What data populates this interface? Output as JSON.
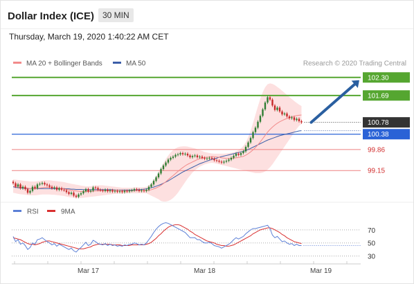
{
  "header": {
    "title": "Dollar Index (ICE)",
    "timeframe": "30 MIN",
    "timestamp": "Thursday, March 19, 2020 1:40:22 AM CET"
  },
  "colors": {
    "price_up": "#2e7d32",
    "price_down": "#c62828",
    "bollinger_fill": "#fde0e0",
    "ma20": "#f28b8b",
    "ma50": "#3b5ea8",
    "resistance": "#55a630",
    "support_blue": "#2a62d6",
    "support_red": "#ee8080",
    "current_price": "#333333",
    "arrow": "#2a5fa0",
    "rsi": "#5b7fd6",
    "rsi_ma": "#d93030"
  },
  "chart_data": [
    {
      "type": "line",
      "name": "price",
      "legend": [
        {
          "label": "MA 20 + Bollinger Bands",
          "color": "#f28b8b"
        },
        {
          "label": "MA 50",
          "color": "#3b5ea8"
        }
      ],
      "legend_position": "top-left",
      "credit": "Research © 2020 Trading Central",
      "x_ticks": [
        {
          "label": "Mar 17",
          "index": 31
        },
        {
          "label": "Mar 18",
          "index": 79
        },
        {
          "label": "Mar 19",
          "index": 127
        }
      ],
      "x_range": [
        0,
        156
      ],
      "ylim": [
        98.1,
        102.6
      ],
      "levels": [
        {
          "label": "102.30",
          "value": 102.3,
          "kind": "resistance"
        },
        {
          "label": "101.69",
          "value": 101.69,
          "kind": "resistance"
        },
        {
          "label": "100.78",
          "value": 100.78,
          "kind": "current"
        },
        {
          "label": "100.38",
          "value": 100.38,
          "kind": "pivot"
        },
        {
          "label": "99.86",
          "value": 99.86,
          "kind": "support"
        },
        {
          "label": "99.15",
          "value": 99.15,
          "kind": "support"
        }
      ],
      "close": [
        98.72,
        98.61,
        98.68,
        98.55,
        98.6,
        98.52,
        98.4,
        98.46,
        98.6,
        98.55,
        98.68,
        98.7,
        98.73,
        98.68,
        98.65,
        98.6,
        98.55,
        98.58,
        98.5,
        98.55,
        98.5,
        98.48,
        98.42,
        98.36,
        98.4,
        98.3,
        98.26,
        98.34,
        98.38,
        98.45,
        98.52,
        98.44,
        98.47,
        98.58,
        98.56,
        98.5,
        98.48,
        98.46,
        98.5,
        98.45,
        98.48,
        98.44,
        98.46,
        98.43,
        98.45,
        98.42,
        98.46,
        98.44,
        98.47,
        98.48,
        98.52,
        98.5,
        98.46,
        98.48,
        98.46,
        98.5,
        98.6,
        98.68,
        98.8,
        98.92,
        99.05,
        99.2,
        99.32,
        99.42,
        99.52,
        99.58,
        99.62,
        99.68,
        99.7,
        99.74,
        99.7,
        99.72,
        99.66,
        99.6,
        99.64,
        99.66,
        99.6,
        99.62,
        99.58,
        99.55,
        99.56,
        99.58,
        99.55,
        99.5,
        99.48,
        99.45,
        99.42,
        99.45,
        99.48,
        99.52,
        99.58,
        99.65,
        99.72,
        99.68,
        99.74,
        99.8,
        99.95,
        100.1,
        100.25,
        100.45,
        100.6,
        100.8,
        101.0,
        101.22,
        101.45,
        101.63,
        101.55,
        101.35,
        101.2,
        101.28,
        101.15,
        101.05,
        101.08,
        100.98,
        100.92,
        100.95,
        100.86,
        100.9,
        100.82,
        100.78
      ],
      "ma20": [
        98.62,
        98.6,
        98.59,
        98.58,
        98.57,
        98.56,
        98.55,
        98.54,
        98.54,
        98.54,
        98.55,
        98.56,
        98.57,
        98.58,
        98.58,
        98.58,
        98.57,
        98.57,
        98.56,
        98.55,
        98.54,
        98.53,
        98.51,
        98.5,
        98.48,
        98.47,
        98.46,
        98.45,
        98.44,
        98.44,
        98.44,
        98.44,
        98.44,
        98.45,
        98.46,
        98.46,
        98.47,
        98.47,
        98.47,
        98.47,
        98.48,
        98.48,
        98.48,
        98.48,
        98.48,
        98.47,
        98.47,
        98.47,
        98.47,
        98.47,
        98.47,
        98.47,
        98.47,
        98.47,
        98.47,
        98.47,
        98.48,
        98.5,
        98.53,
        98.56,
        98.6,
        98.65,
        98.71,
        98.77,
        98.84,
        98.91,
        98.98,
        99.05,
        99.12,
        99.19,
        99.25,
        99.31,
        99.36,
        99.4,
        99.44,
        99.48,
        99.52,
        99.55,
        99.57,
        99.59,
        99.6,
        99.61,
        99.62,
        99.62,
        99.61,
        99.6,
        99.58,
        99.57,
        99.56,
        99.56,
        99.56,
        99.57,
        99.58,
        99.59,
        99.61,
        99.63,
        99.67,
        99.72,
        99.78,
        99.85,
        99.93,
        100.02,
        100.12,
        100.23,
        100.34,
        100.45,
        100.54,
        100.62,
        100.69,
        100.75,
        100.8,
        100.84,
        100.88,
        100.91,
        100.94,
        100.97,
        100.99,
        101.01,
        101.02,
        101.03
      ],
      "bb_upper": [
        98.85,
        98.84,
        98.83,
        98.82,
        98.81,
        98.8,
        98.79,
        98.78,
        98.78,
        98.78,
        98.79,
        98.8,
        98.81,
        98.82,
        98.82,
        98.82,
        98.81,
        98.8,
        98.79,
        98.78,
        98.77,
        98.76,
        98.74,
        98.72,
        98.7,
        98.69,
        98.67,
        98.66,
        98.64,
        98.63,
        98.62,
        98.62,
        98.62,
        98.63,
        98.64,
        98.65,
        98.65,
        98.65,
        98.64,
        98.63,
        98.62,
        98.61,
        98.6,
        98.59,
        98.58,
        98.57,
        98.57,
        98.57,
        98.57,
        98.57,
        98.58,
        98.58,
        98.58,
        98.58,
        98.59,
        98.6,
        98.65,
        98.72,
        98.82,
        98.94,
        99.08,
        99.24,
        99.4,
        99.54,
        99.66,
        99.76,
        99.84,
        99.9,
        99.94,
        99.96,
        99.97,
        99.97,
        99.96,
        99.94,
        99.92,
        99.9,
        99.87,
        99.84,
        99.81,
        99.78,
        99.76,
        99.74,
        99.73,
        99.72,
        99.72,
        99.72,
        99.72,
        99.72,
        99.73,
        99.74,
        99.75,
        99.77,
        99.8,
        99.84,
        99.9,
        99.98,
        100.1,
        100.28,
        100.5,
        100.76,
        101.04,
        101.32,
        101.58,
        101.8,
        101.97,
        102.07,
        102.1,
        102.08,
        102.04,
        101.98,
        101.92,
        101.85,
        101.78,
        101.71,
        101.64,
        101.57,
        101.5,
        101.44,
        101.38,
        101.33
      ],
      "bb_lower": [
        98.4,
        98.38,
        98.36,
        98.35,
        98.34,
        98.33,
        98.32,
        98.31,
        98.31,
        98.31,
        98.32,
        98.33,
        98.34,
        98.34,
        98.34,
        98.34,
        98.33,
        98.33,
        98.32,
        98.31,
        98.3,
        98.29,
        98.27,
        98.25,
        98.24,
        98.23,
        98.22,
        98.22,
        98.22,
        98.23,
        98.24,
        98.25,
        98.26,
        98.27,
        98.28,
        98.29,
        98.3,
        98.31,
        98.32,
        98.33,
        98.34,
        98.35,
        98.36,
        98.37,
        98.37,
        98.37,
        98.38,
        98.38,
        98.38,
        98.38,
        98.38,
        98.38,
        98.38,
        98.38,
        98.38,
        98.38,
        98.34,
        98.3,
        98.26,
        98.22,
        98.18,
        98.12,
        98.1,
        98.1,
        98.12,
        98.16,
        98.22,
        98.3,
        98.4,
        98.52,
        98.64,
        98.76,
        98.88,
        98.98,
        99.08,
        99.16,
        99.22,
        99.28,
        99.32,
        99.36,
        99.38,
        99.4,
        99.41,
        99.4,
        99.38,
        99.36,
        99.34,
        99.32,
        99.3,
        99.28,
        99.26,
        99.24,
        99.22,
        99.2,
        99.18,
        99.16,
        99.14,
        99.12,
        99.1,
        99.08,
        99.06,
        99.06,
        99.06,
        99.08,
        99.12,
        99.18,
        99.26,
        99.36,
        99.48,
        99.6,
        99.72,
        99.84,
        99.96,
        100.08,
        100.2,
        100.32,
        100.44,
        100.56,
        100.66,
        100.73
      ],
      "ma50": [
        98.6,
        98.58,
        98.57,
        98.56,
        98.55,
        98.55,
        98.54,
        98.54,
        98.54,
        98.54,
        98.54,
        98.54,
        98.54,
        98.54,
        98.54,
        98.54,
        98.54,
        98.54,
        98.54,
        98.54,
        98.54,
        98.54,
        98.53,
        98.53,
        98.52,
        98.52,
        98.51,
        98.51,
        98.51,
        98.5,
        98.5,
        98.5,
        98.5,
        98.5,
        98.5,
        98.5,
        98.5,
        98.5,
        98.5,
        98.5,
        98.5,
        98.5,
        98.49,
        98.49,
        98.49,
        98.49,
        98.49,
        98.49,
        98.49,
        98.49,
        98.49,
        98.5,
        98.5,
        98.51,
        98.52,
        98.53,
        98.55,
        98.57,
        98.59,
        98.62,
        98.65,
        98.68,
        98.72,
        98.76,
        98.8,
        98.85,
        98.9,
        98.95,
        99.0,
        99.05,
        99.1,
        99.14,
        99.18,
        99.22,
        99.26,
        99.3,
        99.34,
        99.38,
        99.41,
        99.44,
        99.47,
        99.5,
        99.53,
        99.55,
        99.57,
        99.6,
        99.62,
        99.64,
        99.66,
        99.68,
        99.7,
        99.72,
        99.74,
        99.76,
        99.78,
        99.8,
        99.83,
        99.86,
        99.9,
        99.94,
        99.98,
        100.02,
        100.06,
        100.1,
        100.14,
        100.18,
        100.21,
        100.24,
        100.27,
        100.3,
        100.33,
        100.35,
        100.37,
        100.39,
        100.41,
        100.43,
        100.45,
        100.47,
        100.49,
        100.5
      ]
    },
    {
      "type": "line",
      "name": "rsi",
      "legend": [
        {
          "label": "RSI",
          "color": "#5b7fd6"
        },
        {
          "label": "9MA",
          "color": "#d93030"
        }
      ],
      "legend_position": "top-left",
      "ylim": [
        20,
        90
      ],
      "y_ticks": [
        {
          "label": "70",
          "value": 70
        },
        {
          "label": "50",
          "value": 50
        },
        {
          "label": "30",
          "value": 30
        }
      ],
      "rsi": [
        60,
        52,
        55,
        48,
        50,
        46,
        40,
        43,
        50,
        48,
        55,
        56,
        58,
        55,
        52,
        50,
        47,
        49,
        45,
        48,
        46,
        44,
        42,
        40,
        42,
        38,
        36,
        40,
        43,
        47,
        51,
        46,
        48,
        54,
        52,
        49,
        48,
        47,
        49,
        46,
        48,
        46,
        47,
        45,
        46,
        45,
        47,
        46,
        48,
        48,
        50,
        49,
        47,
        48,
        47,
        50,
        55,
        60,
        66,
        71,
        75,
        78,
        80,
        81,
        80,
        78,
        76,
        74,
        72,
        70,
        68,
        66,
        62,
        58,
        58,
        58,
        55,
        55,
        52,
        50,
        50,
        51,
        49,
        46,
        45,
        44,
        42,
        44,
        46,
        48,
        51,
        55,
        58,
        56,
        58,
        60,
        64,
        67,
        70,
        72,
        72,
        73,
        74,
        75,
        76,
        77,
        72,
        62,
        58,
        60,
        56,
        52,
        53,
        50,
        48,
        49,
        46,
        48,
        46,
        46
      ],
      "ma9": [
        58,
        57,
        56,
        55,
        53,
        51,
        49,
        48,
        48,
        47,
        48,
        49,
        51,
        52,
        53,
        53,
        52,
        51,
        50,
        49,
        48,
        47,
        46,
        45,
        44,
        43,
        42,
        41,
        41,
        41,
        42,
        43,
        44,
        46,
        47,
        48,
        48,
        48,
        48,
        48,
        48,
        47,
        47,
        47,
        47,
        46,
        46,
        46,
        46,
        47,
        47,
        47,
        47,
        47,
        47,
        48,
        49,
        51,
        54,
        57,
        61,
        64,
        68,
        71,
        74,
        76,
        77,
        78,
        78,
        77,
        75,
        73,
        71,
        68,
        66,
        63,
        61,
        59,
        57,
        55,
        53,
        52,
        51,
        50,
        48,
        47,
        46,
        46,
        45,
        45,
        46,
        47,
        49,
        51,
        53,
        55,
        57,
        59,
        61,
        64,
        66,
        68,
        70,
        71,
        72,
        73,
        73,
        72,
        70,
        68,
        66,
        63,
        61,
        58,
        56,
        54,
        52,
        51,
        50,
        49
      ]
    }
  ]
}
